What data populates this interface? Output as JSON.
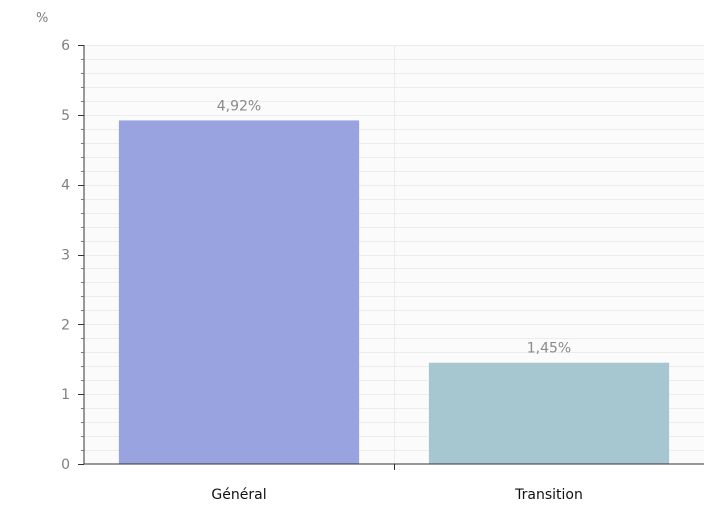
{
  "chart_data": {
    "type": "bar",
    "categories": [
      "Général",
      "Transition"
    ],
    "values": [
      4.92,
      1.45
    ],
    "data_labels": [
      "4,92%",
      "1,45%"
    ],
    "colors": [
      "#99a3df",
      "#a6c6d0"
    ],
    "ylabel": "%",
    "xlabel": "",
    "ylim": [
      0,
      6
    ],
    "yticks": [
      "0",
      "1",
      "2",
      "3",
      "4",
      "5",
      "6"
    ],
    "grid": true,
    "legend": "none"
  }
}
